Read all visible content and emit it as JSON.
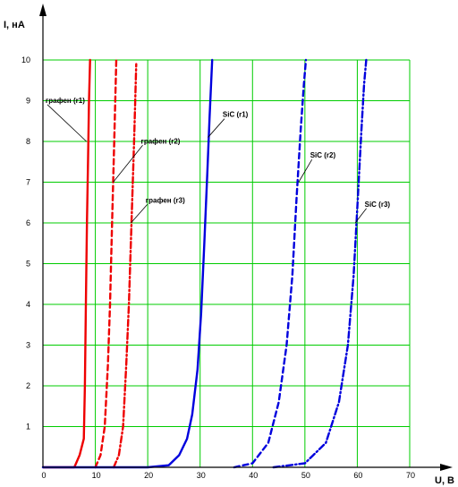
{
  "chart_data": {
    "type": "line",
    "title": "",
    "ylabel": "I, нА",
    "xlabel": "U, B",
    "xlim": [
      0,
      70
    ],
    "ylim": [
      0,
      10
    ],
    "x_ticks": [
      0,
      10,
      20,
      30,
      40,
      50,
      60,
      70
    ],
    "y_ticks": [
      1,
      2,
      3,
      4,
      5,
      6,
      7,
      8,
      9,
      10
    ],
    "grid": true,
    "grid_color": "#00cc00",
    "legend": "none",
    "series": [
      {
        "name": "графен (r1)",
        "color": "#ee0000",
        "dash": "solid",
        "x": [
          0,
          6.0,
          7.0,
          7.8,
          8.0,
          8.2,
          8.4,
          8.6,
          8.8,
          9.0
        ],
        "y": [
          0,
          0,
          0.3,
          0.7,
          2.0,
          4.0,
          6.0,
          7.5,
          9.0,
          10.0
        ]
      },
      {
        "name": "графен (r2)",
        "color": "#ee0000",
        "dash": "dash",
        "x": [
          10.0,
          11.0,
          11.8,
          12.4,
          12.8,
          13.2,
          13.6,
          14.0
        ],
        "y": [
          0,
          0.3,
          1.0,
          2.5,
          4.0,
          6.0,
          8.0,
          10.0
        ]
      },
      {
        "name": "графен (r3)",
        "color": "#ee0000",
        "dash": "dashdot",
        "x": [
          13.5,
          14.5,
          15.3,
          15.9,
          16.4,
          16.9,
          17.4,
          17.8
        ],
        "y": [
          0,
          0.3,
          1.0,
          2.5,
          4.0,
          6.0,
          8.0,
          9.9
        ]
      },
      {
        "name": "SiC (r1)",
        "color": "#0000dd",
        "dash": "solid",
        "x": [
          0,
          20,
          24,
          26,
          27.5,
          28.5,
          29.5,
          30.2,
          30.8,
          31.4,
          31.8,
          32.3
        ],
        "y": [
          0,
          0,
          0.05,
          0.3,
          0.7,
          1.3,
          2.4,
          3.8,
          5.5,
          7.3,
          8.6,
          10.0
        ]
      },
      {
        "name": "SiC (r2)",
        "color": "#0000dd",
        "dash": "dash",
        "x": [
          36.5,
          40,
          43,
          45,
          46.5,
          47.6,
          48.4,
          49.2,
          49.8,
          50.2
        ],
        "y": [
          0,
          0.1,
          0.6,
          1.6,
          3.0,
          4.7,
          6.6,
          8.3,
          9.4,
          10.0
        ]
      },
      {
        "name": "SiC (r3)",
        "color": "#0000dd",
        "dash": "dashdot",
        "x": [
          44,
          50,
          54,
          56.5,
          58.2,
          59.3,
          60.1,
          60.8,
          61.3,
          61.7
        ],
        "y": [
          0,
          0.1,
          0.6,
          1.6,
          3.0,
          4.7,
          6.6,
          8.3,
          9.4,
          10.0
        ]
      }
    ],
    "annotations": [
      {
        "text": "графен (r1)",
        "point_x": 8.3,
        "point_y": 8.0,
        "text_x": 0.5,
        "text_y": 8.95
      },
      {
        "text": "графен (r2)",
        "point_x": 13.4,
        "point_y": 7.0,
        "text_x": 18.7,
        "text_y": 7.95
      },
      {
        "text": "графен (r3)",
        "point_x": 16.8,
        "point_y": 6.0,
        "text_x": 19.6,
        "text_y": 6.5
      },
      {
        "text": "SiC (r1)",
        "point_x": 31.5,
        "point_y": 8.1,
        "text_x": 34.3,
        "text_y": 8.6
      },
      {
        "text": "SiC (r2)",
        "point_x": 48.8,
        "point_y": 7.0,
        "text_x": 51.0,
        "text_y": 7.6
      },
      {
        "text": "SiC (r3)",
        "point_x": 59.6,
        "point_y": 6.0,
        "text_x": 61.4,
        "text_y": 6.4
      }
    ]
  }
}
